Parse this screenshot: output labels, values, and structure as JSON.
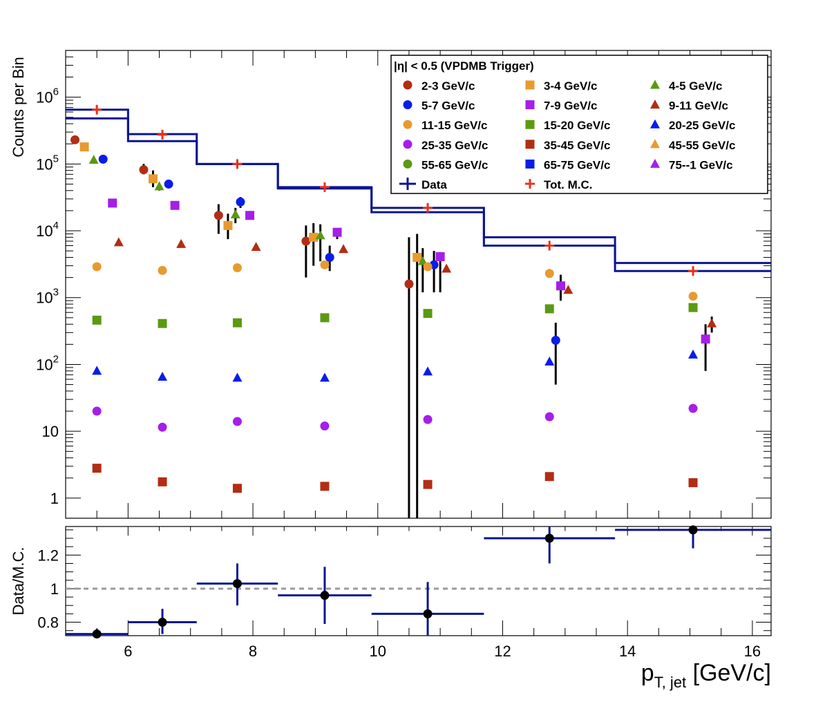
{
  "chart_data": [
    {
      "type": "scatter",
      "log_y": true,
      "xlim": [
        5.0,
        16.3
      ],
      "ylim": [
        0.5,
        5000000
      ],
      "ylabel": "Counts per Bin",
      "xlabel_main": "p",
      "xlabel_sub": "T, jet",
      "xlabel_unit": " [GeV/c]",
      "y_ticks": [
        {
          "value": 1,
          "base": "1",
          "exp": ""
        },
        {
          "value": 10,
          "base": "10",
          "exp": ""
        },
        {
          "value": 100,
          "base": "10",
          "exp": "2"
        },
        {
          "value": 1000,
          "base": "10",
          "exp": "3"
        },
        {
          "value": 10000,
          "base": "10",
          "exp": "4"
        },
        {
          "value": 100000,
          "base": "10",
          "exp": "5"
        },
        {
          "value": 1000000,
          "base": "10",
          "exp": "6"
        }
      ],
      "legend": {
        "title": "|η| < 0.5 (VPDMB Trigger)",
        "placement": "top-right",
        "entries": [
          {
            "label": "2-3 GeV/c",
            "marker": "circle",
            "color": "#b22d13"
          },
          {
            "label": "3-4 GeV/c",
            "marker": "square",
            "color": "#e89a2f"
          },
          {
            "label": "4-5 GeV/c",
            "marker": "triangle",
            "color": "#5a9a12"
          },
          {
            "label": "5-7 GeV/c",
            "marker": "circle",
            "color": "#0a1de8"
          },
          {
            "label": "7-9 GeV/c",
            "marker": "square",
            "color": "#a61ee8"
          },
          {
            "label": "9-11 GeV/c",
            "marker": "triangle",
            "color": "#b22d13"
          },
          {
            "label": "11-15 GeV/c",
            "marker": "circle",
            "color": "#e89a2f"
          },
          {
            "label": "15-20 GeV/c",
            "marker": "square",
            "color": "#5a9a12"
          },
          {
            "label": "20-25 GeV/c",
            "marker": "triangle",
            "color": "#0a1de8"
          },
          {
            "label": "25-35 GeV/c",
            "marker": "circle",
            "color": "#a61ee8"
          },
          {
            "label": "35-45 GeV/c",
            "marker": "square",
            "color": "#b22d13"
          },
          {
            "label": "45-55 GeV/c",
            "marker": "triangle",
            "color": "#e89a2f"
          },
          {
            "label": "55-65 GeV/c",
            "marker": "circle",
            "color": "#5a9a12"
          },
          {
            "label": "65-75 GeV/c",
            "marker": "square",
            "color": "#0a1de8"
          },
          {
            "label": "75--1 GeV/c",
            "marker": "triangle",
            "color": "#a61ee8"
          },
          {
            "label": "Data",
            "marker": "data-cross",
            "color": "#0a1591"
          },
          {
            "label": "Tot. M.C.",
            "marker": "plus",
            "color": "#e8321a"
          }
        ]
      },
      "data_hist": {
        "name": "Data",
        "color": "#0a1591",
        "bins": [
          {
            "x0": 5.0,
            "x1": 6.0,
            "upper": 650000,
            "lower": 480000
          },
          {
            "x0": 6.0,
            "x1": 7.1,
            "upper": 280000,
            "lower": 220000
          },
          {
            "x0": 7.1,
            "x1": 8.4,
            "upper": 100000,
            "lower": 100000
          },
          {
            "x0": 8.4,
            "x1": 9.9,
            "upper": 45000,
            "lower": 43000
          },
          {
            "x0": 9.9,
            "x1": 11.7,
            "upper": 22000,
            "lower": 19000
          },
          {
            "x0": 11.7,
            "x1": 13.8,
            "upper": 8000,
            "lower": 6000
          },
          {
            "x0": 13.8,
            "x1": 16.3,
            "upper": 3300,
            "lower": 2500
          }
        ]
      },
      "mc_total": {
        "name": "Tot. M.C.",
        "color": "#e8321a",
        "x": [
          5.5,
          6.55,
          7.75,
          9.15,
          10.8,
          12.75,
          15.05
        ],
        "y": [
          650000,
          275000,
          100000,
          45000,
          22000,
          6000,
          2500
        ]
      },
      "series": [
        {
          "name": "2-3 GeV/c",
          "marker": "circle",
          "color": "#b22d13",
          "points": [
            {
              "x": 5.15,
              "y": 230000
            },
            {
              "x": 6.25,
              "y": 82000,
              "lo": 70000,
              "hi": 100000
            },
            {
              "x": 7.45,
              "y": 17000,
              "lo": 9000,
              "hi": 25000
            },
            {
              "x": 8.85,
              "y": 7000,
              "lo": 2000,
              "hi": 12000
            },
            {
              "x": 10.5,
              "y": 1600,
              "lo": 0.5,
              "hi": 8000
            }
          ]
        },
        {
          "name": "3-4 GeV/c",
          "marker": "square",
          "color": "#e89a2f",
          "points": [
            {
              "x": 5.3,
              "y": 180000
            },
            {
              "x": 6.4,
              "y": 60000,
              "lo": 45000,
              "hi": 80000
            },
            {
              "x": 7.6,
              "y": 12000,
              "lo": 7500,
              "hi": 18000
            },
            {
              "x": 8.97,
              "y": 8000,
              "lo": 3000,
              "hi": 13000
            },
            {
              "x": 10.63,
              "y": 4000,
              "lo": 0.5,
              "hi": 9000
            }
          ]
        },
        {
          "name": "4-5 GeV/c",
          "marker": "triangle",
          "color": "#5a9a12",
          "points": [
            {
              "x": 5.45,
              "y": 115000
            },
            {
              "x": 6.5,
              "y": 46000,
              "lo": 40000,
              "hi": 52000
            },
            {
              "x": 7.72,
              "y": 17500,
              "lo": 13000,
              "hi": 22000
            },
            {
              "x": 9.08,
              "y": 8500,
              "lo": 3500,
              "hi": 12500
            },
            {
              "x": 10.72,
              "y": 3500,
              "lo": 1200,
              "hi": 5500
            }
          ]
        },
        {
          "name": "5-7 GeV/c",
          "marker": "circle",
          "color": "#0a1de8",
          "points": [
            {
              "x": 5.6,
              "y": 118000
            },
            {
              "x": 6.65,
              "y": 50000
            },
            {
              "x": 7.8,
              "y": 27000,
              "lo": 22000,
              "hi": 32000
            },
            {
              "x": 9.23,
              "y": 4000,
              "lo": 2500,
              "hi": 6000
            },
            {
              "x": 10.9,
              "y": 3100,
              "lo": 1200,
              "hi": 5000
            },
            {
              "x": 12.85,
              "y": 230,
              "lo": 50,
              "hi": 420
            }
          ]
        },
        {
          "name": "7-9 GeV/c",
          "marker": "square",
          "color": "#a61ee8",
          "points": [
            {
              "x": 5.75,
              "y": 26000
            },
            {
              "x": 6.75,
              "y": 24000
            },
            {
              "x": 7.95,
              "y": 17000
            },
            {
              "x": 9.35,
              "y": 9500,
              "lo": 7500,
              "hi": 11000
            },
            {
              "x": 11.0,
              "y": 4100,
              "lo": 1200,
              "hi": 4800
            },
            {
              "x": 12.93,
              "y": 1500,
              "lo": 900,
              "hi": 2200
            },
            {
              "x": 15.25,
              "y": 240,
              "lo": 80,
              "hi": 400
            }
          ]
        },
        {
          "name": "9-11 GeV/c",
          "marker": "triangle",
          "color": "#b22d13",
          "points": [
            {
              "x": 5.85,
              "y": 6700
            },
            {
              "x": 6.85,
              "y": 6300
            },
            {
              "x": 8.05,
              "y": 5700
            },
            {
              "x": 9.45,
              "y": 5300
            },
            {
              "x": 11.1,
              "y": 2700
            },
            {
              "x": 13.05,
              "y": 1300
            },
            {
              "x": 15.35,
              "y": 410,
              "lo": 300,
              "hi": 520
            }
          ]
        },
        {
          "name": "11-15 GeV/c",
          "marker": "circle",
          "color": "#e89a2f",
          "points": [
            {
              "x": 5.5,
              "y": 2900
            },
            {
              "x": 6.55,
              "y": 2550
            },
            {
              "x": 7.75,
              "y": 2800
            },
            {
              "x": 9.15,
              "y": 3100
            },
            {
              "x": 10.8,
              "y": 2900
            },
            {
              "x": 12.75,
              "y": 2300
            },
            {
              "x": 15.05,
              "y": 1050
            }
          ]
        },
        {
          "name": "15-20 GeV/c",
          "marker": "square",
          "color": "#5a9a12",
          "points": [
            {
              "x": 5.5,
              "y": 460
            },
            {
              "x": 6.55,
              "y": 410
            },
            {
              "x": 7.75,
              "y": 420
            },
            {
              "x": 9.15,
              "y": 500
            },
            {
              "x": 10.8,
              "y": 580
            },
            {
              "x": 12.75,
              "y": 680
            },
            {
              "x": 15.05,
              "y": 710
            }
          ]
        },
        {
          "name": "20-25 GeV/c",
          "marker": "triangle",
          "color": "#0a1de8",
          "points": [
            {
              "x": 5.5,
              "y": 80
            },
            {
              "x": 6.55,
              "y": 65
            },
            {
              "x": 7.75,
              "y": 63
            },
            {
              "x": 9.15,
              "y": 63
            },
            {
              "x": 10.8,
              "y": 78
            },
            {
              "x": 12.75,
              "y": 110
            },
            {
              "x": 15.05,
              "y": 140
            }
          ]
        },
        {
          "name": "25-35 GeV/c",
          "marker": "circle",
          "color": "#a61ee8",
          "points": [
            {
              "x": 5.5,
              "y": 20
            },
            {
              "x": 6.55,
              "y": 11.5
            },
            {
              "x": 7.75,
              "y": 14
            },
            {
              "x": 9.15,
              "y": 12
            },
            {
              "x": 10.8,
              "y": 15
            },
            {
              "x": 12.75,
              "y": 16.5
            },
            {
              "x": 15.05,
              "y": 22
            }
          ]
        },
        {
          "name": "35-45 GeV/c",
          "marker": "square",
          "color": "#b22d13",
          "points": [
            {
              "x": 5.5,
              "y": 2.8
            },
            {
              "x": 6.55,
              "y": 1.75
            },
            {
              "x": 7.75,
              "y": 1.4
            },
            {
              "x": 9.15,
              "y": 1.5
            },
            {
              "x": 10.8,
              "y": 1.6
            },
            {
              "x": 12.75,
              "y": 2.1
            },
            {
              "x": 15.05,
              "y": 1.7
            }
          ]
        }
      ]
    },
    {
      "type": "scatter",
      "xlim": [
        5.0,
        16.3
      ],
      "ylim": [
        0.72,
        1.37
      ],
      "ylabel": "Data/M.C.",
      "x_ticks": [
        6,
        8,
        10,
        12,
        14,
        16
      ],
      "y_ticks": [
        {
          "value": 0.8,
          "label": "0.8"
        },
        {
          "value": 1.0,
          "label": "1"
        },
        {
          "value": 1.2,
          "label": "1.2"
        }
      ],
      "reference_line": 1.0,
      "points": [
        {
          "x": 5.5,
          "y": 0.73,
          "x0": 5.0,
          "x1": 6.0,
          "lo": 0.71,
          "hi": 0.76
        },
        {
          "x": 6.55,
          "y": 0.8,
          "x0": 6.0,
          "x1": 7.1,
          "lo": 0.73,
          "hi": 0.88
        },
        {
          "x": 7.75,
          "y": 1.03,
          "x0": 7.1,
          "x1": 8.4,
          "lo": 0.9,
          "hi": 1.15
        },
        {
          "x": 9.15,
          "y": 0.96,
          "x0": 8.4,
          "x1": 9.9,
          "lo": 0.79,
          "hi": 1.13
        },
        {
          "x": 10.8,
          "y": 0.85,
          "x0": 9.9,
          "x1": 11.7,
          "lo": 0.69,
          "hi": 1.04
        },
        {
          "x": 12.75,
          "y": 1.3,
          "x0": 11.7,
          "x1": 13.8,
          "lo": 1.15,
          "hi": 1.4
        },
        {
          "x": 15.05,
          "y": 1.35,
          "x0": 13.8,
          "x1": 16.3,
          "lo": 1.24,
          "hi": 1.4
        }
      ]
    }
  ]
}
